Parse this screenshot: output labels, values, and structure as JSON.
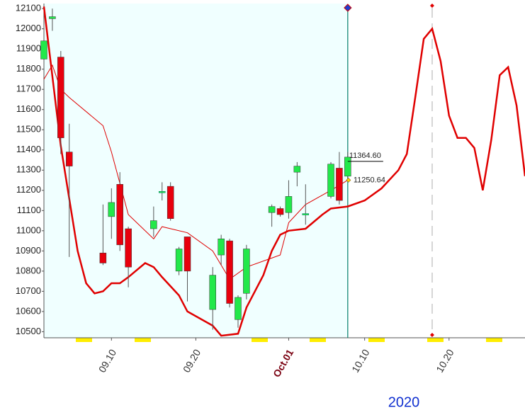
{
  "chart_data": {
    "type": "candlestick",
    "x": [
      "09.02",
      "09.03",
      "09.04",
      "09.05",
      "09.09",
      "09.10",
      "09.11",
      "09.12",
      "09.15",
      "09.16",
      "09.17",
      "09.18",
      "09.19",
      "09.22",
      "09.23",
      "09.24",
      "09.25",
      "09.26",
      "09.29",
      "09.30",
      "10.01",
      "10.02",
      "10.03",
      "10.06",
      "10.07",
      "10.08"
    ],
    "open": [
      11850,
      12050,
      11860,
      11390,
      10890,
      11070,
      11230,
      11010,
      11010,
      11190,
      11220,
      10800,
      10970,
      10610,
      10880,
      10950,
      10560,
      10690,
      11090,
      11110,
      11090,
      11290,
      11080,
      11170,
      11310,
      11270
    ],
    "high": [
      11960,
      12100,
      11890,
      11530,
      11130,
      11210,
      11290,
      11020,
      11120,
      11240,
      11240,
      10920,
      10970,
      10820,
      10980,
      10960,
      10680,
      10930,
      11130,
      11120,
      11250,
      11340,
      11230,
      11340,
      11390,
      11390
    ],
    "low": [
      11780,
      11990,
      11380,
      10870,
      10830,
      10960,
      10900,
      10720,
      10970,
      11150,
      11050,
      10780,
      10650,
      10510,
      10830,
      10620,
      10520,
      10660,
      11020,
      11070,
      11060,
      11220,
      11030,
      11160,
      11130,
      11260
    ],
    "close": [
      11940,
      12060,
      11460,
      11320,
      10840,
      11140,
      10930,
      10820,
      11050,
      11195,
      11060,
      10910,
      10800,
      10780,
      10960,
      10640,
      10670,
      10910,
      11120,
      11080,
      11170,
      11320,
      11085,
      11330,
      11150,
      11364.6
    ],
    "up_color": "#22e84a",
    "down_color": "#e8000d",
    "lines": [
      {
        "color": "#e00000",
        "width": 1,
        "x": [
          "09.02",
          "09.03",
          "09.04",
          "09.05",
          "09.09",
          "09.10",
          "09.12",
          "09.15",
          "09.16",
          "09.19",
          "09.22",
          "09.24",
          "09.26",
          "09.30",
          "10.01",
          "10.03",
          "10.06",
          "10.08"
        ],
        "values": [
          11750,
          11820,
          11700,
          11660,
          11520,
          11390,
          11080,
          10960,
          11020,
          10990,
          10900,
          10760,
          10820,
          10880,
          11040,
          11130,
          11200,
          11250.64
        ]
      },
      {
        "color": "#e00000",
        "width": 2.5,
        "x": [
          "09.02",
          "09.04",
          "09.06",
          "09.07",
          "09.08",
          "09.09",
          "09.10",
          "09.11",
          "09.12",
          "09.14",
          "09.15",
          "09.16",
          "09.18",
          "09.19",
          "09.22",
          "09.23",
          "09.25",
          "09.26",
          "09.28",
          "09.29",
          "09.30",
          "10.01",
          "10.03",
          "10.05",
          "10.06",
          "10.08",
          "10.10",
          "10.12",
          "10.14",
          "10.15",
          "10.16",
          "10.17",
          "10.18",
          "10.19",
          "10.20",
          "10.21",
          "10.22",
          "10.23",
          "10.24",
          "10.25",
          "10.26",
          "10.27",
          "10.28",
          "10.29"
        ],
        "values": [
          12110,
          11420,
          10900,
          10740,
          10690,
          10700,
          10740,
          10740,
          10770,
          10840,
          10820,
          10770,
          10680,
          10600,
          10530,
          10480,
          10490,
          10620,
          10780,
          10900,
          10980,
          11000,
          11010,
          11080,
          11110,
          11120,
          11150,
          11210,
          11300,
          11380,
          11660,
          11950,
          12000,
          11840,
          11570,
          11460,
          11460,
          11410,
          11200,
          11450,
          11770,
          11810,
          11620,
          11270
        ]
      }
    ],
    "last_close": {
      "value": 11364.6,
      "label": "11364.60"
    },
    "line_end": {
      "value": 11250.64,
      "label": "11250.64"
    },
    "vline": {
      "x": "10.08",
      "color": "#00806a"
    },
    "dashed_vline": {
      "x": "10.18",
      "color": "#bbbbbb"
    },
    "shade_color": "#f0ffff",
    "xlim": [
      "09.02",
      "10.29"
    ],
    "xticks": [
      {
        "value": "09.10",
        "label": "09.10"
      },
      {
        "value": "09.20",
        "label": "09.20"
      },
      {
        "value": "10.01",
        "label": "Oct.01"
      },
      {
        "value": "10.10",
        "label": "10.10"
      },
      {
        "value": "10.20",
        "label": "10.20"
      }
    ],
    "ylim": [
      10470,
      12125
    ],
    "yticks": [
      10500,
      10600,
      10700,
      10800,
      10900,
      11000,
      11100,
      11200,
      11300,
      11400,
      11500,
      11600,
      11700,
      11800,
      11900,
      12000,
      12100
    ],
    "year_label": "2020"
  }
}
